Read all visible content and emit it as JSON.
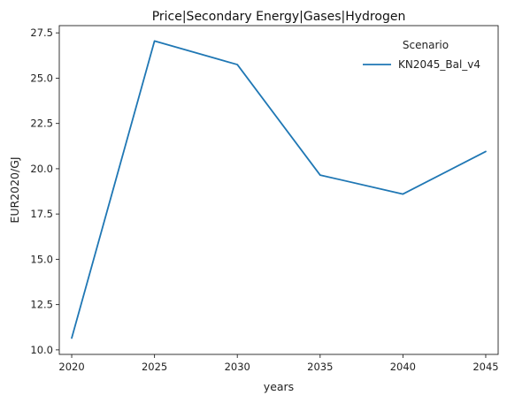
{
  "chart_data": {
    "type": "line",
    "title": "Price|Secondary Energy|Gases|Hydrogen",
    "xlabel": "years",
    "ylabel": "EUR2020/GJ",
    "x": [
      2020,
      2025,
      2030,
      2035,
      2040,
      2045
    ],
    "x_ticks": [
      "2020",
      "2025",
      "2030",
      "2035",
      "2040",
      "2045"
    ],
    "y_ticks": [
      "10.0",
      "12.5",
      "15.0",
      "17.5",
      "20.0",
      "22.5",
      "25.0",
      "27.5"
    ],
    "xlim": [
      2019.25,
      2045.75
    ],
    "ylim": [
      9.75,
      27.9
    ],
    "grid": false,
    "legend": {
      "title": "Scenario",
      "placement": "top-right"
    },
    "series": [
      {
        "name": "KN2045_Bal_v4",
        "color": "#1f77b4",
        "values": [
          10.65,
          27.05,
          25.75,
          19.65,
          18.6,
          20.95
        ]
      }
    ]
  }
}
